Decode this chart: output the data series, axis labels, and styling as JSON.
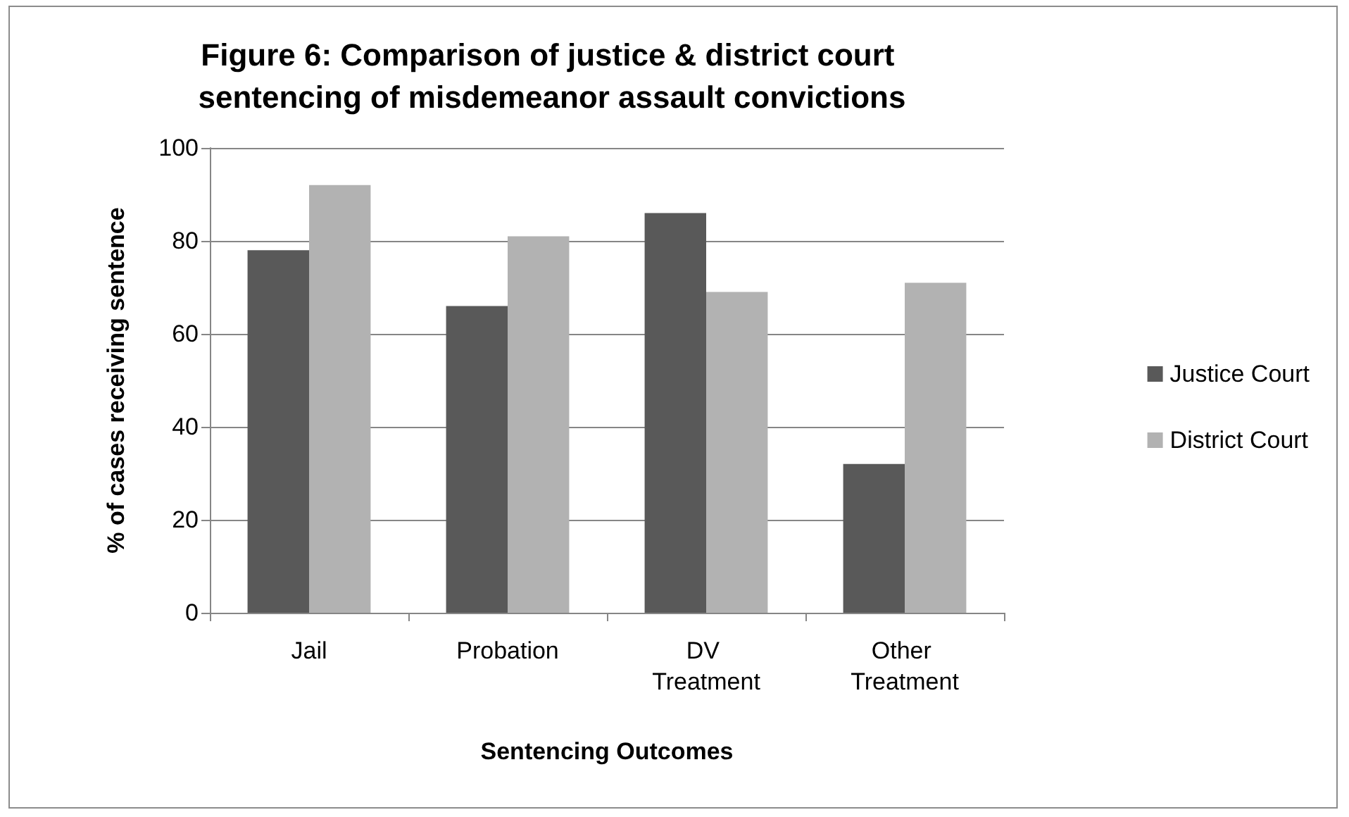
{
  "chart_data": {
    "type": "bar",
    "title": "Figure 6: Comparison of justice & district court sentencing of misdemeanor assault convictions",
    "xlabel": "Sentencing Outcomes",
    "ylabel": "% of cases receiving sentence",
    "categories": [
      "Jail",
      "Probation",
      "DV Treatment",
      "Other Treatment"
    ],
    "series": [
      {
        "name": "Justice Court",
        "color": "#595959",
        "values": [
          78,
          66,
          86,
          32
        ]
      },
      {
        "name": "District Court",
        "color": "#b2b2b2",
        "values": [
          92,
          81,
          69,
          71
        ]
      }
    ],
    "ylim": [
      0,
      100
    ],
    "yticks": [
      0,
      20,
      40,
      60,
      80,
      100
    ],
    "grid": "y",
    "legend": "right"
  }
}
